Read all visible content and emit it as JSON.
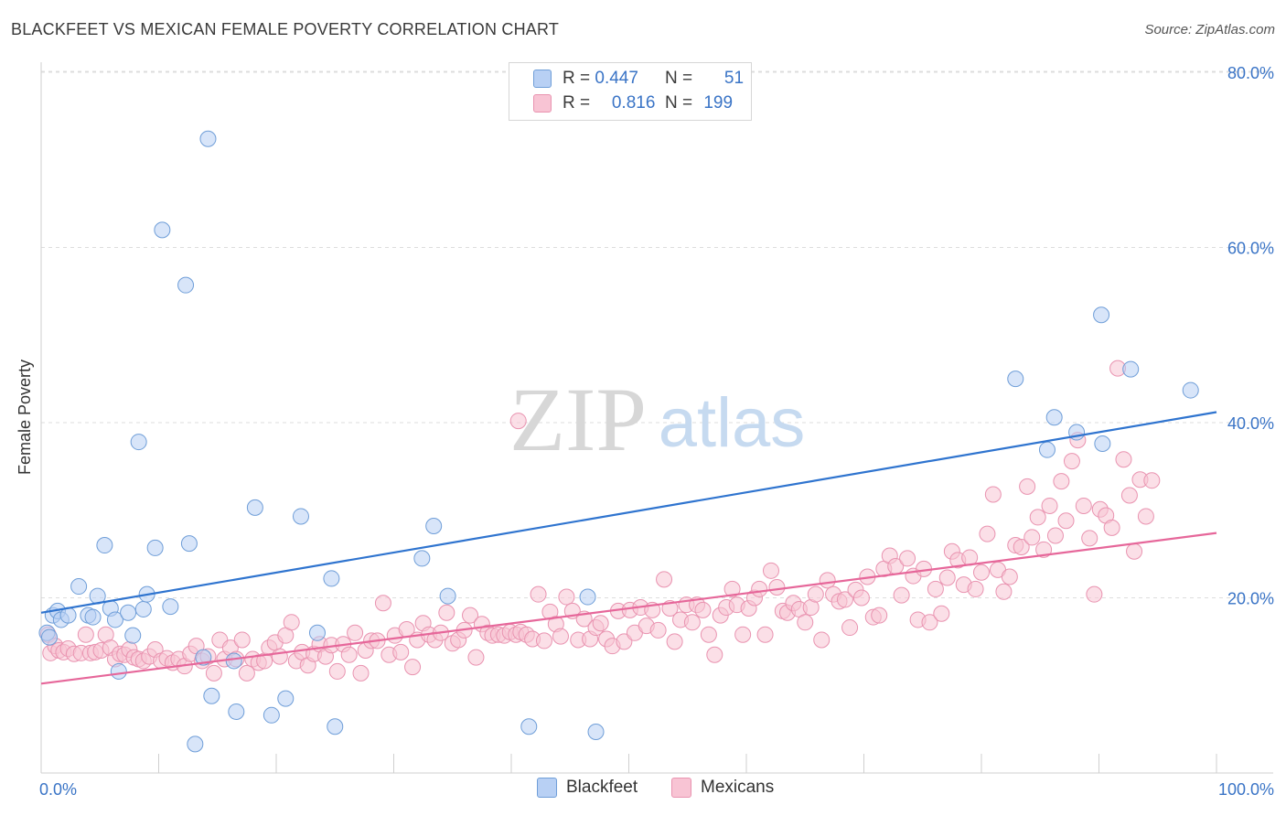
{
  "title": "BLACKFEET VS MEXICAN FEMALE POVERTY CORRELATION CHART",
  "source": "Source: ZipAtlas.com",
  "watermark": {
    "zip": "ZIP",
    "atlas": "atlas"
  },
  "colors": {
    "blackfeet_fill": "#b8d0f4",
    "blackfeet_stroke": "#6f9ed8",
    "blackfeet_line": "#2f74cf",
    "mexicans_fill": "#f8c4d4",
    "mexicans_stroke": "#e993b0",
    "mexicans_line": "#e6679a",
    "axis_label": "#3a74c6",
    "grid": "#dddddd"
  },
  "legend": {
    "rows": [
      {
        "r_label": "R =",
        "r_value": "0.447",
        "n_label": "N =",
        "n_value": "51"
      },
      {
        "r_label": "R =",
        "r_value": "0.816",
        "n_label": "N =",
        "n_value": "199"
      }
    ]
  },
  "bottom_legend": {
    "blackfeet": "Blackfeet",
    "mexicans": "Mexicans"
  },
  "chart_data": {
    "type": "scatter",
    "title": "BLACKFEET VS MEXICAN FEMALE POVERTY CORRELATION CHART",
    "xlabel": "",
    "ylabel": "Female Poverty",
    "xlim": [
      0,
      100
    ],
    "ylim": [
      0,
      80
    ],
    "x_tick_labels": [
      "0.0%",
      "100.0%"
    ],
    "y_ticks": [
      20,
      40,
      60,
      80
    ],
    "y_tick_labels": [
      "20.0%",
      "40.0%",
      "60.0%",
      "80.0%"
    ],
    "grid": true,
    "series": [
      {
        "name": "Blackfeet",
        "r": 0.447,
        "n": 51,
        "trend": {
          "x": [
            0,
            100
          ],
          "y": [
            18.3,
            41.2
          ]
        },
        "points": [
          [
            0.5,
            16
          ],
          [
            0.7,
            15.5
          ],
          [
            1,
            18
          ],
          [
            1.4,
            18.5
          ],
          [
            1.7,
            17.5
          ],
          [
            2.3,
            18
          ],
          [
            3.2,
            21.3
          ],
          [
            4,
            18
          ],
          [
            4.4,
            17.8
          ],
          [
            4.8,
            20.2
          ],
          [
            5.4,
            26
          ],
          [
            5.9,
            18.8
          ],
          [
            6.3,
            17.5
          ],
          [
            6.6,
            11.6
          ],
          [
            7.4,
            18.3
          ],
          [
            7.8,
            15.7
          ],
          [
            8.3,
            37.8
          ],
          [
            8.7,
            18.7
          ],
          [
            9,
            20.4
          ],
          [
            9.7,
            25.7
          ],
          [
            10.3,
            62
          ],
          [
            11,
            19
          ],
          [
            12.3,
            55.7
          ],
          [
            12.6,
            26.2
          ],
          [
            13.1,
            3.3
          ],
          [
            13.8,
            13.2
          ],
          [
            14.2,
            72.4
          ],
          [
            14.5,
            8.8
          ],
          [
            16.4,
            12.8
          ],
          [
            16.6,
            7
          ],
          [
            18.2,
            30.3
          ],
          [
            19.6,
            6.6
          ],
          [
            20.8,
            8.5
          ],
          [
            22.1,
            29.3
          ],
          [
            23.5,
            16
          ],
          [
            24.7,
            22.2
          ],
          [
            25,
            5.3
          ],
          [
            32.4,
            24.5
          ],
          [
            33.4,
            28.2
          ],
          [
            34.6,
            20.2
          ],
          [
            41.5,
            5.3
          ],
          [
            46.5,
            20.1
          ],
          [
            47.2,
            4.7
          ],
          [
            82.9,
            45
          ],
          [
            85.6,
            36.9
          ],
          [
            86.2,
            40.6
          ],
          [
            88.1,
            38.9
          ],
          [
            90.2,
            52.3
          ],
          [
            90.3,
            37.6
          ],
          [
            92.7,
            46.1
          ],
          [
            97.8,
            43.7
          ]
        ]
      },
      {
        "name": "Mexicans",
        "r": 0.816,
        "n": 199,
        "trend": {
          "x": [
            0,
            100
          ],
          "y": [
            10.2,
            27.4
          ]
        },
        "points": [
          [
            0.6,
            15.8
          ],
          [
            0.8,
            13.7
          ],
          [
            1.2,
            14.5
          ],
          [
            1.5,
            14
          ],
          [
            1.9,
            13.8
          ],
          [
            2.3,
            14.2
          ],
          [
            2.8,
            13.6
          ],
          [
            3.4,
            13.7
          ],
          [
            3.8,
            15.8
          ],
          [
            4.2,
            13.7
          ],
          [
            4.6,
            13.8
          ],
          [
            5.1,
            14
          ],
          [
            5.5,
            15.8
          ],
          [
            5.9,
            14.3
          ],
          [
            6.3,
            13
          ],
          [
            6.7,
            13.6
          ],
          [
            7.1,
            13.5
          ],
          [
            7.5,
            14.1
          ],
          [
            7.9,
            13.2
          ],
          [
            8.3,
            13
          ],
          [
            8.7,
            12.8
          ],
          [
            9.2,
            13.3
          ],
          [
            9.7,
            14.1
          ],
          [
            10.2,
            12.8
          ],
          [
            10.7,
            13.1
          ],
          [
            11.2,
            12.6
          ],
          [
            11.7,
            13
          ],
          [
            12.2,
            12.2
          ],
          [
            12.7,
            13.6
          ],
          [
            13.2,
            14.5
          ],
          [
            13.7,
            12.8
          ],
          [
            14.2,
            13.3
          ],
          [
            14.7,
            11.4
          ],
          [
            15.2,
            15.2
          ],
          [
            15.6,
            13
          ],
          [
            16.1,
            14.3
          ],
          [
            16.6,
            13
          ],
          [
            17.1,
            15.2
          ],
          [
            17.5,
            11.4
          ],
          [
            18,
            13
          ],
          [
            18.5,
            12.6
          ],
          [
            19,
            12.8
          ],
          [
            19.4,
            14.3
          ],
          [
            19.9,
            14.9
          ],
          [
            20.3,
            13.3
          ],
          [
            20.8,
            15.7
          ],
          [
            21.3,
            17.2
          ],
          [
            21.7,
            12.8
          ],
          [
            22.2,
            13.8
          ],
          [
            22.7,
            12.3
          ],
          [
            23.2,
            13.6
          ],
          [
            23.7,
            14.7
          ],
          [
            24.2,
            13.3
          ],
          [
            24.7,
            14.6
          ],
          [
            25.2,
            11.6
          ],
          [
            25.7,
            14.7
          ],
          [
            26.2,
            13.5
          ],
          [
            26.7,
            16
          ],
          [
            27.2,
            11.4
          ],
          [
            27.6,
            14
          ],
          [
            28.1,
            15.1
          ],
          [
            28.6,
            15.1
          ],
          [
            29.1,
            19.4
          ],
          [
            29.6,
            13.5
          ],
          [
            30.1,
            15.7
          ],
          [
            30.6,
            13.8
          ],
          [
            31.1,
            16.4
          ],
          [
            31.6,
            12.1
          ],
          [
            32,
            15.2
          ],
          [
            32.5,
            17.1
          ],
          [
            33,
            15.8
          ],
          [
            33.5,
            15.2
          ],
          [
            34,
            16
          ],
          [
            34.5,
            18.3
          ],
          [
            35,
            14.8
          ],
          [
            35.5,
            15.2
          ],
          [
            36,
            16.3
          ],
          [
            36.5,
            18
          ],
          [
            37,
            13.2
          ],
          [
            37.5,
            17
          ],
          [
            38,
            16
          ],
          [
            38.4,
            15.7
          ],
          [
            38.9,
            15.8
          ],
          [
            39.4,
            15.7
          ],
          [
            39.9,
            16.1
          ],
          [
            40.4,
            15.8
          ],
          [
            40.8,
            16.1
          ],
          [
            41.3,
            15.8
          ],
          [
            41.8,
            15.3
          ],
          [
            42.3,
            20.4
          ],
          [
            42.8,
            15.1
          ],
          [
            43.3,
            18.4
          ],
          [
            43.8,
            17
          ],
          [
            44.2,
            15.6
          ],
          [
            44.7,
            20.1
          ],
          [
            45.2,
            18.5
          ],
          [
            45.7,
            15.2
          ],
          [
            46.2,
            17.6
          ],
          [
            46.7,
            15.3
          ],
          [
            47.2,
            16.6
          ],
          [
            47.6,
            17.1
          ],
          [
            48.1,
            15.3
          ],
          [
            48.6,
            14.5
          ],
          [
            49.1,
            18.5
          ],
          [
            49.6,
            15
          ],
          [
            50.1,
            18.6
          ],
          [
            50.5,
            16
          ],
          [
            51,
            18.9
          ],
          [
            51.5,
            16.8
          ],
          [
            52,
            18.6
          ],
          [
            52.5,
            16.3
          ],
          [
            53,
            22.1
          ],
          [
            53.5,
            18.8
          ],
          [
            53.9,
            15
          ],
          [
            54.4,
            17.5
          ],
          [
            54.9,
            19.2
          ],
          [
            55.4,
            17.2
          ],
          [
            55.8,
            19.2
          ],
          [
            56.3,
            18.6
          ],
          [
            56.8,
            15.8
          ],
          [
            57.3,
            13.5
          ],
          [
            57.8,
            18
          ],
          [
            58.3,
            18.9
          ],
          [
            58.8,
            21
          ],
          [
            59.2,
            19.2
          ],
          [
            59.7,
            15.8
          ],
          [
            60.2,
            18.8
          ],
          [
            60.7,
            20
          ],
          [
            61.1,
            21
          ],
          [
            61.6,
            15.8
          ],
          [
            62.1,
            23.1
          ],
          [
            62.6,
            21.2
          ],
          [
            63.1,
            18.5
          ],
          [
            63.5,
            18.3
          ],
          [
            64,
            19.4
          ],
          [
            64.5,
            18.7
          ],
          [
            65,
            17.2
          ],
          [
            65.5,
            18.9
          ],
          [
            65.9,
            20.4
          ],
          [
            66.4,
            15.2
          ],
          [
            66.9,
            22
          ],
          [
            67.4,
            20.4
          ],
          [
            67.9,
            19.6
          ],
          [
            68.4,
            19.8
          ],
          [
            68.8,
            16.6
          ],
          [
            69.3,
            20.9
          ],
          [
            69.8,
            20
          ],
          [
            70.3,
            22.4
          ],
          [
            70.8,
            17.8
          ],
          [
            71.3,
            18
          ],
          [
            71.7,
            23.3
          ],
          [
            72.2,
            24.8
          ],
          [
            72.7,
            23.6
          ],
          [
            73.2,
            20.3
          ],
          [
            73.7,
            24.5
          ],
          [
            74.2,
            22.5
          ],
          [
            74.6,
            17.5
          ],
          [
            75.1,
            23.3
          ],
          [
            75.6,
            17.2
          ],
          [
            76.1,
            21
          ],
          [
            76.6,
            18.2
          ],
          [
            77.1,
            22.3
          ],
          [
            77.5,
            25.3
          ],
          [
            78,
            24.3
          ],
          [
            78.5,
            21.5
          ],
          [
            79,
            24.6
          ],
          [
            79.5,
            21
          ],
          [
            80,
            22.9
          ],
          [
            80.5,
            27.3
          ],
          [
            81,
            31.8
          ],
          [
            81.4,
            23.2
          ],
          [
            81.9,
            20.7
          ],
          [
            82.4,
            22.4
          ],
          [
            82.9,
            26
          ],
          [
            83.4,
            25.8
          ],
          [
            83.9,
            32.7
          ],
          [
            84.3,
            26.9
          ],
          [
            84.8,
            29.2
          ],
          [
            85.3,
            25.5
          ],
          [
            85.8,
            30.5
          ],
          [
            86.3,
            27.1
          ],
          [
            86.8,
            33.3
          ],
          [
            87.2,
            28.8
          ],
          [
            87.7,
            35.6
          ],
          [
            88.2,
            38
          ],
          [
            88.7,
            30.5
          ],
          [
            89.2,
            26.8
          ],
          [
            89.6,
            20.4
          ],
          [
            90.1,
            30.1
          ],
          [
            90.6,
            29.4
          ],
          [
            91.1,
            28
          ],
          [
            91.6,
            46.2
          ],
          [
            92.1,
            35.8
          ],
          [
            92.6,
            31.7
          ],
          [
            93,
            25.3
          ],
          [
            93.5,
            33.5
          ],
          [
            94,
            29.3
          ],
          [
            94.5,
            33.4
          ],
          [
            40.6,
            40.2
          ]
        ]
      }
    ]
  }
}
